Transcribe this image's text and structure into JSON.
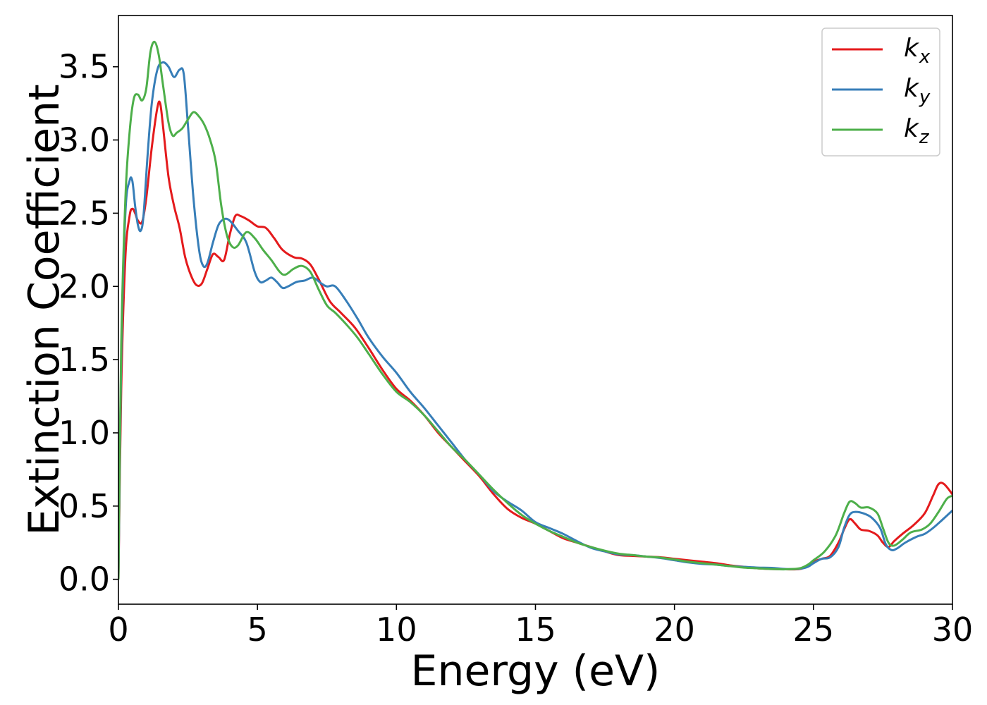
{
  "chart_data": {
    "type": "line",
    "title": "",
    "xlabel": "Energy (eV)",
    "ylabel": "Extinction Coefficient",
    "xlim": [
      0,
      30
    ],
    "ylim": [
      -0.17,
      3.85
    ],
    "xticks": [
      0,
      5,
      10,
      15,
      20,
      25,
      30
    ],
    "xtick_labels": [
      "0",
      "5",
      "10",
      "15",
      "20",
      "25",
      "30"
    ],
    "yticks": [
      0.0,
      0.5,
      1.0,
      1.5,
      2.0,
      2.5,
      3.0,
      3.5
    ],
    "ytick_labels": [
      "0.0",
      "0.5",
      "1.0",
      "1.5",
      "2.0",
      "2.5",
      "3.0",
      "3.5"
    ],
    "grid": false,
    "legend_position": "top-right",
    "series": [
      {
        "name": "k",
        "subscript": "x",
        "color": "#e41a1c",
        "points": [
          [
            0.0,
            0.0
          ],
          [
            0.1,
            1.3
          ],
          [
            0.25,
            2.2
          ],
          [
            0.4,
            2.48
          ],
          [
            0.5,
            2.53
          ],
          [
            0.6,
            2.5
          ],
          [
            0.7,
            2.45
          ],
          [
            0.85,
            2.44
          ],
          [
            1.0,
            2.6
          ],
          [
            1.2,
            2.95
          ],
          [
            1.4,
            3.22
          ],
          [
            1.5,
            3.25
          ],
          [
            1.6,
            3.1
          ],
          [
            1.8,
            2.75
          ],
          [
            2.0,
            2.55
          ],
          [
            2.2,
            2.4
          ],
          [
            2.4,
            2.2
          ],
          [
            2.6,
            2.08
          ],
          [
            2.8,
            2.01
          ],
          [
            3.0,
            2.02
          ],
          [
            3.2,
            2.12
          ],
          [
            3.4,
            2.22
          ],
          [
            3.6,
            2.2
          ],
          [
            3.8,
            2.18
          ],
          [
            4.0,
            2.35
          ],
          [
            4.2,
            2.48
          ],
          [
            4.4,
            2.48
          ],
          [
            4.7,
            2.45
          ],
          [
            5.0,
            2.41
          ],
          [
            5.3,
            2.4
          ],
          [
            5.6,
            2.33
          ],
          [
            5.9,
            2.25
          ],
          [
            6.3,
            2.2
          ],
          [
            6.6,
            2.19
          ],
          [
            6.9,
            2.15
          ],
          [
            7.2,
            2.05
          ],
          [
            7.6,
            1.9
          ],
          [
            8.0,
            1.82
          ],
          [
            8.5,
            1.72
          ],
          [
            9.0,
            1.58
          ],
          [
            9.5,
            1.43
          ],
          [
            10.0,
            1.3
          ],
          [
            10.5,
            1.22
          ],
          [
            11.0,
            1.12
          ],
          [
            11.5,
            1.0
          ],
          [
            12.0,
            0.9
          ],
          [
            12.5,
            0.8
          ],
          [
            13.0,
            0.7
          ],
          [
            13.5,
            0.58
          ],
          [
            14.0,
            0.48
          ],
          [
            14.5,
            0.42
          ],
          [
            15.0,
            0.38
          ],
          [
            15.5,
            0.33
          ],
          [
            16.0,
            0.28
          ],
          [
            16.5,
            0.25
          ],
          [
            17.0,
            0.22
          ],
          [
            17.5,
            0.19
          ],
          [
            18.0,
            0.165
          ],
          [
            18.5,
            0.16
          ],
          [
            19.0,
            0.155
          ],
          [
            19.5,
            0.15
          ],
          [
            20.0,
            0.14
          ],
          [
            20.5,
            0.13
          ],
          [
            21.0,
            0.12
          ],
          [
            21.5,
            0.11
          ],
          [
            22.0,
            0.095
          ],
          [
            22.5,
            0.085
          ],
          [
            23.0,
            0.075
          ],
          [
            23.5,
            0.07
          ],
          [
            24.0,
            0.068
          ],
          [
            24.5,
            0.07
          ],
          [
            24.8,
            0.09
          ],
          [
            25.0,
            0.12
          ],
          [
            25.3,
            0.14
          ],
          [
            25.6,
            0.16
          ],
          [
            25.9,
            0.25
          ],
          [
            26.1,
            0.34
          ],
          [
            26.3,
            0.41
          ],
          [
            26.5,
            0.38
          ],
          [
            26.7,
            0.34
          ],
          [
            27.0,
            0.33
          ],
          [
            27.3,
            0.3
          ],
          [
            27.5,
            0.25
          ],
          [
            27.7,
            0.22
          ],
          [
            27.9,
            0.26
          ],
          [
            28.2,
            0.31
          ],
          [
            28.6,
            0.37
          ],
          [
            29.0,
            0.45
          ],
          [
            29.3,
            0.57
          ],
          [
            29.5,
            0.65
          ],
          [
            29.7,
            0.65
          ],
          [
            30.0,
            0.58
          ]
        ]
      },
      {
        "name": "k",
        "subscript": "y",
        "color": "#377eb8",
        "points": [
          [
            0.0,
            0.0
          ],
          [
            0.1,
            1.5
          ],
          [
            0.25,
            2.5
          ],
          [
            0.4,
            2.72
          ],
          [
            0.5,
            2.72
          ],
          [
            0.6,
            2.55
          ],
          [
            0.7,
            2.42
          ],
          [
            0.8,
            2.38
          ],
          [
            0.9,
            2.48
          ],
          [
            1.05,
            2.9
          ],
          [
            1.2,
            3.25
          ],
          [
            1.4,
            3.48
          ],
          [
            1.6,
            3.53
          ],
          [
            1.8,
            3.5
          ],
          [
            2.0,
            3.43
          ],
          [
            2.2,
            3.48
          ],
          [
            2.35,
            3.45
          ],
          [
            2.5,
            3.1
          ],
          [
            2.7,
            2.6
          ],
          [
            2.9,
            2.25
          ],
          [
            3.05,
            2.14
          ],
          [
            3.2,
            2.16
          ],
          [
            3.4,
            2.3
          ],
          [
            3.6,
            2.42
          ],
          [
            3.8,
            2.46
          ],
          [
            4.0,
            2.45
          ],
          [
            4.3,
            2.38
          ],
          [
            4.6,
            2.3
          ],
          [
            4.9,
            2.1
          ],
          [
            5.1,
            2.03
          ],
          [
            5.3,
            2.04
          ],
          [
            5.5,
            2.06
          ],
          [
            5.7,
            2.03
          ],
          [
            5.9,
            1.99
          ],
          [
            6.1,
            2.0
          ],
          [
            6.4,
            2.03
          ],
          [
            6.7,
            2.04
          ],
          [
            7.0,
            2.06
          ],
          [
            7.3,
            2.02
          ],
          [
            7.5,
            2.0
          ],
          [
            7.8,
            2.0
          ],
          [
            8.2,
            1.9
          ],
          [
            8.6,
            1.78
          ],
          [
            9.0,
            1.65
          ],
          [
            9.5,
            1.52
          ],
          [
            10.0,
            1.41
          ],
          [
            10.5,
            1.28
          ],
          [
            11.0,
            1.17
          ],
          [
            11.5,
            1.05
          ],
          [
            12.0,
            0.93
          ],
          [
            12.5,
            0.81
          ],
          [
            13.0,
            0.71
          ],
          [
            13.5,
            0.6
          ],
          [
            14.0,
            0.53
          ],
          [
            14.5,
            0.47
          ],
          [
            15.0,
            0.39
          ],
          [
            15.5,
            0.35
          ],
          [
            16.0,
            0.31
          ],
          [
            16.5,
            0.26
          ],
          [
            17.0,
            0.215
          ],
          [
            17.5,
            0.19
          ],
          [
            18.0,
            0.17
          ],
          [
            18.5,
            0.165
          ],
          [
            19.0,
            0.155
          ],
          [
            19.5,
            0.145
          ],
          [
            20.0,
            0.13
          ],
          [
            20.5,
            0.115
          ],
          [
            21.0,
            0.105
          ],
          [
            21.5,
            0.1
          ],
          [
            22.0,
            0.09
          ],
          [
            22.5,
            0.085
          ],
          [
            23.0,
            0.08
          ],
          [
            23.5,
            0.078
          ],
          [
            24.0,
            0.07
          ],
          [
            24.5,
            0.072
          ],
          [
            24.8,
            0.085
          ],
          [
            25.0,
            0.11
          ],
          [
            25.3,
            0.14
          ],
          [
            25.6,
            0.15
          ],
          [
            25.9,
            0.22
          ],
          [
            26.1,
            0.35
          ],
          [
            26.3,
            0.44
          ],
          [
            26.5,
            0.46
          ],
          [
            26.8,
            0.45
          ],
          [
            27.1,
            0.42
          ],
          [
            27.4,
            0.35
          ],
          [
            27.6,
            0.24
          ],
          [
            27.8,
            0.2
          ],
          [
            28.0,
            0.21
          ],
          [
            28.3,
            0.25
          ],
          [
            28.7,
            0.29
          ],
          [
            29.0,
            0.31
          ],
          [
            29.3,
            0.35
          ],
          [
            29.6,
            0.4
          ],
          [
            30.0,
            0.47
          ]
        ]
      },
      {
        "name": "k",
        "subscript": "z",
        "color": "#4daf4a",
        "points": [
          [
            0.0,
            0.0
          ],
          [
            0.1,
            1.6
          ],
          [
            0.25,
            2.6
          ],
          [
            0.4,
            3.05
          ],
          [
            0.55,
            3.28
          ],
          [
            0.7,
            3.31
          ],
          [
            0.85,
            3.27
          ],
          [
            1.0,
            3.35
          ],
          [
            1.15,
            3.6
          ],
          [
            1.3,
            3.67
          ],
          [
            1.45,
            3.58
          ],
          [
            1.6,
            3.38
          ],
          [
            1.8,
            3.12
          ],
          [
            1.95,
            3.03
          ],
          [
            2.1,
            3.05
          ],
          [
            2.3,
            3.08
          ],
          [
            2.5,
            3.14
          ],
          [
            2.7,
            3.19
          ],
          [
            2.9,
            3.16
          ],
          [
            3.1,
            3.1
          ],
          [
            3.3,
            3.0
          ],
          [
            3.5,
            2.85
          ],
          [
            3.7,
            2.55
          ],
          [
            3.9,
            2.35
          ],
          [
            4.1,
            2.27
          ],
          [
            4.3,
            2.28
          ],
          [
            4.6,
            2.37
          ],
          [
            4.9,
            2.33
          ],
          [
            5.2,
            2.25
          ],
          [
            5.5,
            2.18
          ],
          [
            5.8,
            2.1
          ],
          [
            6.0,
            2.08
          ],
          [
            6.3,
            2.12
          ],
          [
            6.6,
            2.14
          ],
          [
            6.9,
            2.1
          ],
          [
            7.2,
            1.98
          ],
          [
            7.5,
            1.87
          ],
          [
            7.8,
            1.82
          ],
          [
            8.2,
            1.74
          ],
          [
            8.6,
            1.65
          ],
          [
            9.0,
            1.54
          ],
          [
            9.5,
            1.4
          ],
          [
            10.0,
            1.28
          ],
          [
            10.5,
            1.21
          ],
          [
            11.0,
            1.12
          ],
          [
            11.5,
            1.01
          ],
          [
            12.0,
            0.9
          ],
          [
            12.5,
            0.81
          ],
          [
            13.0,
            0.71
          ],
          [
            13.5,
            0.61
          ],
          [
            14.0,
            0.52
          ],
          [
            14.5,
            0.44
          ],
          [
            15.0,
            0.38
          ],
          [
            15.5,
            0.33
          ],
          [
            16.0,
            0.29
          ],
          [
            16.5,
            0.25
          ],
          [
            17.0,
            0.22
          ],
          [
            17.5,
            0.195
          ],
          [
            18.0,
            0.175
          ],
          [
            18.5,
            0.165
          ],
          [
            19.0,
            0.155
          ],
          [
            19.5,
            0.148
          ],
          [
            20.0,
            0.135
          ],
          [
            20.5,
            0.12
          ],
          [
            21.0,
            0.11
          ],
          [
            21.5,
            0.1
          ],
          [
            22.0,
            0.09
          ],
          [
            22.5,
            0.08
          ],
          [
            23.0,
            0.075
          ],
          [
            23.5,
            0.07
          ],
          [
            24.0,
            0.068
          ],
          [
            24.5,
            0.075
          ],
          [
            24.8,
            0.1
          ],
          [
            25.0,
            0.13
          ],
          [
            25.4,
            0.19
          ],
          [
            25.8,
            0.3
          ],
          [
            26.1,
            0.45
          ],
          [
            26.3,
            0.53
          ],
          [
            26.5,
            0.52
          ],
          [
            26.7,
            0.49
          ],
          [
            27.0,
            0.49
          ],
          [
            27.3,
            0.45
          ],
          [
            27.5,
            0.35
          ],
          [
            27.7,
            0.25
          ],
          [
            27.9,
            0.23
          ],
          [
            28.2,
            0.27
          ],
          [
            28.5,
            0.32
          ],
          [
            28.9,
            0.34
          ],
          [
            29.2,
            0.38
          ],
          [
            29.5,
            0.46
          ],
          [
            29.8,
            0.55
          ],
          [
            30.0,
            0.57
          ]
        ]
      }
    ]
  }
}
